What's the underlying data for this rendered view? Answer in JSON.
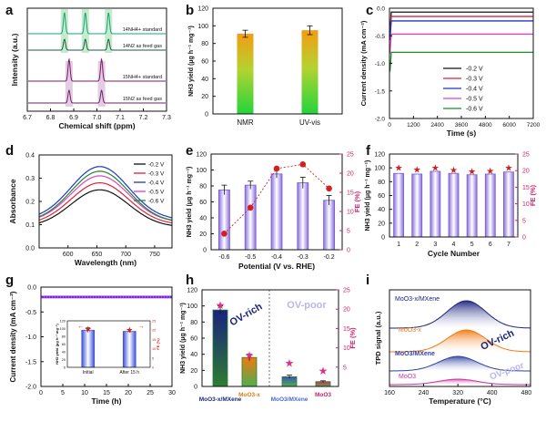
{
  "figure": {
    "panel_letters": [
      "a",
      "b",
      "c",
      "d",
      "e",
      "f",
      "g",
      "h",
      "i"
    ]
  },
  "chart_data": [
    {
      "id": "a",
      "type": "line",
      "xlabel": "Chemical shift (ppm)",
      "ylabel": "Intensity (a.u.)",
      "x_ticks": [
        "6.7",
        "6.8",
        "6.9",
        "7.0",
        "7.1",
        "7.2",
        "7.3"
      ],
      "xlim": [
        6.7,
        7.3
      ],
      "reversed_x": true,
      "series": [
        {
          "name": "14NH4+ standard",
          "color": "#19a07f",
          "peaks": [
            6.86,
            6.95,
            7.05
          ]
        },
        {
          "name": "14N2 as feed gas",
          "color": "#1f5a4a",
          "peaks": [
            6.86,
            6.95,
            7.05
          ]
        },
        {
          "name": "15NH4+ standard",
          "color": "#7a1c66",
          "peaks": [
            6.88,
            7.02
          ]
        },
        {
          "name": "15N2 as feed gas",
          "color": "#6e2466",
          "peaks": [
            6.88,
            7.02
          ]
        }
      ],
      "highlight_14": [
        6.86,
        6.95,
        7.05
      ],
      "highlight_15": [
        6.88,
        7.02
      ]
    },
    {
      "id": "b",
      "type": "bar",
      "categories": [
        "NMR",
        "UV-vis"
      ],
      "values": [
        91,
        95
      ],
      "errors": [
        4,
        5
      ],
      "ylabel": "NH3 yield (μg h⁻¹ mg⁻¹)",
      "ylim": [
        0,
        120
      ],
      "y_ticks": [
        0,
        20,
        40,
        60,
        80,
        100,
        120
      ]
    },
    {
      "id": "c",
      "type": "line",
      "xlabel": "Time (s)",
      "ylabel": "Current density (mA cm⁻²)",
      "xlim": [
        0,
        7200
      ],
      "x_ticks": [
        0,
        1200,
        2400,
        3600,
        4800,
        6000,
        7200
      ],
      "ylim": [
        -2.0,
        0
      ],
      "y_ticks": [
        -2.0,
        -1.5,
        -1.0,
        -0.5,
        0.0
      ],
      "y_tick_labels": [
        "-2.0",
        "-1.5",
        "-1.0",
        "-0.5",
        "0.0"
      ],
      "legend_position": "lower-right",
      "series": [
        {
          "name": "-0.2 V",
          "color": "#111111",
          "value": -0.07
        },
        {
          "name": "-0.3 V",
          "color": "#e0203a",
          "value": -0.15
        },
        {
          "name": "-0.4 V",
          "color": "#2233cc",
          "value": -0.23
        },
        {
          "name": "-0.5 V",
          "color": "#e040c0",
          "value": -0.47
        },
        {
          "name": "-0.6 V",
          "color": "#1a8a2a",
          "value": -0.8
        }
      ]
    },
    {
      "id": "d",
      "type": "line",
      "xlabel": "Wavelength (nm)",
      "ylabel": "Absorbance",
      "xlim": [
        550,
        780
      ],
      "x_ticks": [
        600,
        650,
        700,
        750
      ],
      "ylim": [
        0.0,
        0.4
      ],
      "y_ticks": [
        0.0,
        0.1,
        0.2,
        0.3,
        0.4
      ],
      "y_tick_labels": [
        "0.0",
        "0.1",
        "0.2",
        "0.3",
        "0.4"
      ],
      "legend_position": "top-right",
      "series": [
        {
          "name": "-0.2 V",
          "color": "#111111",
          "peak": 0.25,
          "base": 0.09
        },
        {
          "name": "-0.3 V",
          "color": "#e0203a",
          "peak": 0.28,
          "base": 0.1
        },
        {
          "name": "-0.4 V",
          "color": "#2233cc",
          "peak": 0.35,
          "base": 0.12
        },
        {
          "name": "-0.5 V",
          "color": "#e040c0",
          "peak": 0.31,
          "base": 0.11
        },
        {
          "name": "-0.6 V",
          "color": "#1a8a2a",
          "peak": 0.33,
          "base": 0.11
        }
      ]
    },
    {
      "id": "e",
      "type": "bar",
      "categories": [
        "-0.6",
        "-0.5",
        "-0.4",
        "-0.3",
        "-0.2"
      ],
      "values": [
        75,
        81,
        95,
        84,
        62
      ],
      "errors": [
        6,
        5,
        5,
        7,
        6
      ],
      "fe": [
        4.2,
        11,
        21.2,
        22.3,
        16
      ],
      "xlabel": "Potential (V vs. RHE)",
      "ylabel": "NH3 yield (μg h⁻¹ mg⁻¹)",
      "ylabel_right": "FE (%)",
      "ylim": [
        0,
        120
      ],
      "y_ticks": [
        0,
        20,
        40,
        60,
        80,
        100,
        120
      ],
      "ylim_right": [
        0,
        25
      ],
      "y_ticks_right": [
        0,
        5,
        10,
        15,
        20,
        25
      ]
    },
    {
      "id": "f",
      "type": "bar",
      "categories": [
        "1",
        "2",
        "3",
        "4",
        "5",
        "6",
        "7"
      ],
      "values": [
        92,
        91,
        95,
        92,
        90,
        91,
        94
      ],
      "fe": [
        20.8,
        20.2,
        20.8,
        20.0,
        19.6,
        19.8,
        20.8
      ],
      "xlabel": "Cycle Number",
      "ylabel": "NH3 yield (μg h⁻¹ mg⁻¹)",
      "ylabel_right": "FE (%)",
      "ylim": [
        0,
        120
      ],
      "y_ticks": [
        0,
        20,
        40,
        60,
        80,
        100,
        120
      ],
      "ylim_right": [
        0,
        25
      ],
      "y_ticks_right": [
        0,
        5,
        10,
        15,
        20,
        25
      ]
    },
    {
      "id": "g",
      "type": "line",
      "xlabel": "Time (h)",
      "ylabel": "Current density (mA cm⁻²)",
      "xlim": [
        0,
        30
      ],
      "x_ticks": [
        0,
        5,
        10,
        15,
        20,
        25,
        30
      ],
      "ylim": [
        -2.0,
        0
      ],
      "y_ticks": [
        -2.0,
        -1.5,
        -1.0,
        -0.5,
        0.0
      ],
      "y_tick_labels": [
        "-2.0",
        "-1.5",
        "-1.0",
        "-0.5",
        "0.0"
      ],
      "series_value": -0.2,
      "inset": {
        "categories": [
          "Initial",
          "After 15 h"
        ],
        "values": [
          96,
          93
        ],
        "errors": [
          6,
          4
        ],
        "fe": [
          20.5,
          20.0
        ],
        "ylabel": "NH3 yield (μg h⁻¹ mg⁻¹)",
        "ylabel_right": "FE (%)",
        "ylim": [
          0,
          120
        ],
        "y_ticks": [
          0,
          20,
          40,
          60,
          80,
          100,
          120
        ],
        "ylim_right": [
          0,
          25
        ],
        "y_ticks_right": [
          0,
          5,
          10,
          15,
          20,
          25
        ]
      }
    },
    {
      "id": "h",
      "type": "bar",
      "categories": [
        "MoO3-x/MXene",
        "MoO3-x",
        "MoO3/MXene",
        "MoO3"
      ],
      "values": [
        95,
        36,
        12,
        6
      ],
      "errors": [
        5,
        4,
        2,
        1
      ],
      "fe": [
        21,
        8,
        6,
        4
      ],
      "bar_colors": [
        "#1a2a7a",
        "#e07a10",
        "#4a6ad0",
        "#c82070"
      ],
      "ylabel": "NH3 yield (μg h⁻¹ mg⁻¹)",
      "ylabel_right": "FE (%)",
      "ylim": [
        0,
        120
      ],
      "y_ticks": [
        0,
        20,
        40,
        60,
        80,
        100,
        120
      ],
      "ylim_right": [
        0,
        25
      ],
      "y_ticks_right": [
        5,
        10,
        15,
        20,
        25
      ],
      "annotations": [
        "OV-rich",
        "OV-poor"
      ]
    },
    {
      "id": "i",
      "type": "area",
      "xlabel": "Temperature (°C)",
      "ylabel": "TPD signal (a.u.)",
      "xlim": [
        160,
        490
      ],
      "x_ticks": [
        160,
        240,
        320,
        400,
        480
      ],
      "series": [
        {
          "name": "MoO3-x/MXene",
          "color": "#1a237e",
          "peak_x": 340,
          "height": 1.0
        },
        {
          "name": "MoO3-x",
          "color": "#f07a10",
          "peak_x": 340,
          "height": 0.75
        },
        {
          "name": "MoO3/MXene",
          "color": "#3040a0",
          "peak_x": 320,
          "height": 0.45
        },
        {
          "name": "MoO3",
          "color": "#d030a0",
          "peak_x": 320,
          "height": 0.15
        }
      ],
      "annotations": [
        "OV-rich",
        "OV-poor"
      ]
    }
  ]
}
